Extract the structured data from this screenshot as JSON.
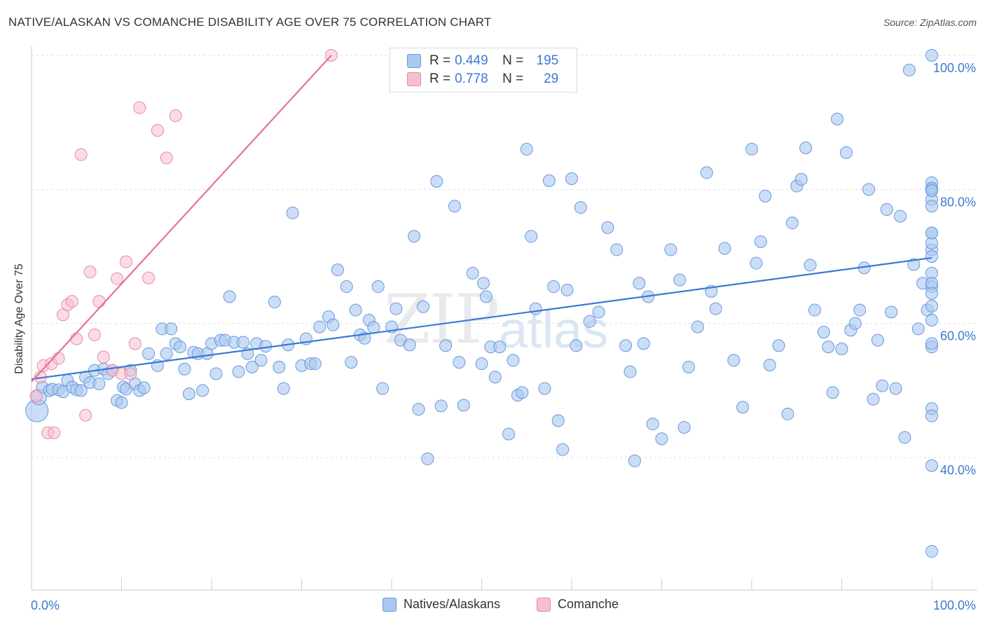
{
  "title": "NATIVE/ALASKAN VS COMANCHE DISABILITY AGE OVER 75 CORRELATION CHART",
  "source": "Source: ZipAtlas.com",
  "watermark": {
    "zip": "ZIP",
    "atlas": "atlas"
  },
  "legend": {
    "r_label": "R =",
    "n_label": "N =",
    "rows": [
      {
        "r": "0.449",
        "n": "195",
        "fill": "#aac8f0",
        "stroke": "#6699dd"
      },
      {
        "r": "0.778",
        "n": "29",
        "fill": "#f7c0cf",
        "stroke": "#e68aa3"
      }
    ]
  },
  "bottom_legend": [
    {
      "label": "Natives/Alaskans",
      "fill": "#aac8f0",
      "stroke": "#6699dd"
    },
    {
      "label": "Comanche",
      "fill": "#f7c0cf",
      "stroke": "#e68aa3"
    }
  ],
  "chart_data": {
    "type": "scatter",
    "title": "NATIVE/ALASKAN VS COMANCHE DISABILITY AGE OVER 75 CORRELATION CHART",
    "xlabel": "",
    "ylabel": "Disability Age Over 75",
    "xlim": [
      0,
      100
    ],
    "ylim": [
      20,
      102
    ],
    "x_tick_labels": [
      "0.0%",
      "100.0%"
    ],
    "y_tick_labels": [
      "40.0%",
      "60.0%",
      "80.0%",
      "100.0%"
    ],
    "y_ticks": [
      40,
      60,
      80,
      100
    ],
    "grid": true,
    "legend_position": "top-center",
    "colors": {
      "natives": "#3b78d4",
      "comanche": "#e8709a"
    },
    "series": [
      {
        "name": "Natives/Alaskans",
        "r": 0.449,
        "n": 195,
        "trend": {
          "x": [
            0,
            100
          ],
          "y": [
            51.7,
            69.8
          ]
        },
        "points": [
          [
            0.6,
            47
          ],
          [
            0.8,
            49
          ],
          [
            1.2,
            50.5
          ],
          [
            2,
            50
          ],
          [
            2.3,
            50.2
          ],
          [
            3,
            50.1
          ],
          [
            3.5,
            49.8
          ],
          [
            4,
            51.5
          ],
          [
            4.5,
            50.5
          ],
          [
            5,
            50.1
          ],
          [
            5.5,
            50
          ],
          [
            6,
            52
          ],
          [
            6.5,
            51.2
          ],
          [
            7,
            53
          ],
          [
            7.5,
            51
          ],
          [
            8,
            53.2
          ],
          [
            8.5,
            52.5
          ],
          [
            9,
            53
          ],
          [
            9.5,
            48.5
          ],
          [
            10,
            48.2
          ],
          [
            10.2,
            50.5
          ],
          [
            10.5,
            50.2
          ],
          [
            11,
            53
          ],
          [
            11.5,
            51
          ],
          [
            12,
            50
          ],
          [
            12.5,
            50.4
          ],
          [
            13,
            55.5
          ],
          [
            14,
            53.7
          ],
          [
            14.5,
            59.2
          ],
          [
            15,
            55.5
          ],
          [
            15.5,
            59.2
          ],
          [
            16,
            57
          ],
          [
            16.5,
            56.5
          ],
          [
            17,
            53.2
          ],
          [
            17.5,
            49.5
          ],
          [
            18,
            55.7
          ],
          [
            18.5,
            55.5
          ],
          [
            19,
            50
          ],
          [
            19.5,
            55.5
          ],
          [
            20,
            57
          ],
          [
            20.5,
            52.5
          ],
          [
            21,
            57.5
          ],
          [
            21.5,
            57.5
          ],
          [
            22,
            64
          ],
          [
            22.5,
            57.2
          ],
          [
            23,
            52.8
          ],
          [
            23.5,
            57.2
          ],
          [
            24,
            55.5
          ],
          [
            24.5,
            53.5
          ],
          [
            25,
            57
          ],
          [
            25.5,
            54.5
          ],
          [
            26,
            56.6
          ],
          [
            27,
            63.2
          ],
          [
            27.5,
            53.5
          ],
          [
            28,
            50.3
          ],
          [
            28.5,
            56.8
          ],
          [
            29,
            76.5
          ],
          [
            30,
            53.7
          ],
          [
            30.5,
            57.7
          ],
          [
            31,
            54
          ],
          [
            31.5,
            54
          ],
          [
            32,
            59.5
          ],
          [
            33,
            61
          ],
          [
            33.5,
            59.8
          ],
          [
            34,
            68
          ],
          [
            35,
            65.5
          ],
          [
            35.5,
            54.2
          ],
          [
            36,
            62
          ],
          [
            36.5,
            58.3
          ],
          [
            37,
            57.8
          ],
          [
            37.5,
            60.5
          ],
          [
            38,
            59.4
          ],
          [
            38.5,
            65.5
          ],
          [
            39,
            50.3
          ],
          [
            40,
            59.5
          ],
          [
            40.5,
            62.2
          ],
          [
            41,
            57.5
          ],
          [
            42,
            56.8
          ],
          [
            42.5,
            73
          ],
          [
            43,
            47.2
          ],
          [
            43.5,
            62.5
          ],
          [
            44,
            39.8
          ],
          [
            45,
            81.2
          ],
          [
            45.5,
            47.7
          ],
          [
            46,
            56.7
          ],
          [
            47,
            77.5
          ],
          [
            47.5,
            54.2
          ],
          [
            48,
            47.8
          ],
          [
            49,
            67.5
          ],
          [
            50,
            54
          ],
          [
            50.2,
            66
          ],
          [
            50.5,
            64
          ],
          [
            51,
            56.5
          ],
          [
            51.5,
            52
          ],
          [
            52,
            56.5
          ],
          [
            53,
            43.5
          ],
          [
            53.5,
            54.5
          ],
          [
            54,
            49.3
          ],
          [
            54.5,
            49.7
          ],
          [
            55,
            86
          ],
          [
            55.5,
            73
          ],
          [
            56,
            62.2
          ],
          [
            57,
            50.3
          ],
          [
            57.5,
            81.3
          ],
          [
            58,
            65.5
          ],
          [
            58.5,
            45.5
          ],
          [
            59,
            41.2
          ],
          [
            59.5,
            65
          ],
          [
            60,
            81.6
          ],
          [
            60.5,
            56.7
          ],
          [
            61,
            77.3
          ],
          [
            62,
            60.3
          ],
          [
            63,
            61.7
          ],
          [
            64,
            74.3
          ],
          [
            65,
            71
          ],
          [
            66,
            56.7
          ],
          [
            66.5,
            52.8
          ],
          [
            67,
            39.5
          ],
          [
            67.5,
            66
          ],
          [
            68,
            57
          ],
          [
            68.5,
            64
          ],
          [
            69,
            45
          ],
          [
            70,
            42.8
          ],
          [
            71,
            71
          ],
          [
            72,
            66.5
          ],
          [
            72.5,
            44.5
          ],
          [
            73,
            53.5
          ],
          [
            74,
            59.5
          ],
          [
            75,
            82.5
          ],
          [
            75.5,
            64.8
          ],
          [
            76,
            62.2
          ],
          [
            77,
            71.2
          ],
          [
            78,
            54.5
          ],
          [
            79,
            47.5
          ],
          [
            80,
            86
          ],
          [
            80.5,
            69
          ],
          [
            81,
            72.2
          ],
          [
            81.5,
            79
          ],
          [
            82,
            53.8
          ],
          [
            83,
            56.7
          ],
          [
            84,
            46.5
          ],
          [
            84.5,
            75
          ],
          [
            85,
            80.5
          ],
          [
            85.5,
            81.5
          ],
          [
            86,
            86.2
          ],
          [
            86.5,
            68.7
          ],
          [
            87,
            62
          ],
          [
            88,
            58.7
          ],
          [
            88.5,
            56.5
          ],
          [
            89,
            49.7
          ],
          [
            89.5,
            90.5
          ],
          [
            90,
            56.2
          ],
          [
            90.5,
            85.5
          ],
          [
            91,
            59
          ],
          [
            91.5,
            60
          ],
          [
            92,
            62
          ],
          [
            92.5,
            68.3
          ],
          [
            93,
            80
          ],
          [
            93.5,
            48.7
          ],
          [
            94,
            57.5
          ],
          [
            94.5,
            50.7
          ],
          [
            95,
            77
          ],
          [
            95.5,
            61.7
          ],
          [
            96,
            50.3
          ],
          [
            96.5,
            76
          ],
          [
            97,
            43
          ],
          [
            97.5,
            97.8
          ],
          [
            98,
            68.8
          ],
          [
            98.5,
            59.2
          ],
          [
            99,
            66
          ],
          [
            99.5,
            62
          ],
          [
            100,
            71
          ],
          [
            100,
            65.5
          ],
          [
            100,
            72
          ],
          [
            100,
            56.5
          ],
          [
            100,
            38.8
          ],
          [
            100,
            67.5
          ],
          [
            100,
            60.5
          ],
          [
            100,
            73.5
          ],
          [
            100,
            70
          ],
          [
            100,
            66
          ],
          [
            100,
            57
          ],
          [
            100,
            47.3
          ],
          [
            100,
            46.2
          ],
          [
            100,
            78.5
          ],
          [
            100,
            81
          ],
          [
            100,
            77.5
          ],
          [
            100,
            80
          ],
          [
            100,
            100
          ],
          [
            100,
            80.2
          ],
          [
            100,
            73.5
          ],
          [
            100,
            64.5
          ],
          [
            100,
            62.6
          ],
          [
            100,
            79.8
          ],
          [
            100,
            26
          ]
        ]
      },
      {
        "name": "Comanche",
        "r": 0.778,
        "n": 29,
        "trend": {
          "x": [
            0,
            33.3
          ],
          "y": [
            51.3,
            100
          ]
        },
        "points": [
          [
            0.5,
            49.2
          ],
          [
            1,
            52
          ],
          [
            1.3,
            53.7
          ],
          [
            1.8,
            43.7
          ],
          [
            2.2,
            54
          ],
          [
            2.5,
            43.7
          ],
          [
            3,
            54.8
          ],
          [
            3.5,
            61.3
          ],
          [
            4,
            62.8
          ],
          [
            4.5,
            63.3
          ],
          [
            5,
            57.7
          ],
          [
            5.5,
            85.2
          ],
          [
            6,
            46.3
          ],
          [
            6.5,
            67.7
          ],
          [
            7,
            58.3
          ],
          [
            7.5,
            63.3
          ],
          [
            8,
            55
          ],
          [
            9,
            53
          ],
          [
            9.5,
            66.7
          ],
          [
            10,
            52.5
          ],
          [
            10.5,
            69.2
          ],
          [
            11,
            52.5
          ],
          [
            11.5,
            57
          ],
          [
            12,
            92.2
          ],
          [
            13,
            66.8
          ],
          [
            14,
            88.8
          ],
          [
            15,
            84.7
          ],
          [
            16,
            91
          ],
          [
            33.3,
            100
          ]
        ]
      }
    ]
  }
}
